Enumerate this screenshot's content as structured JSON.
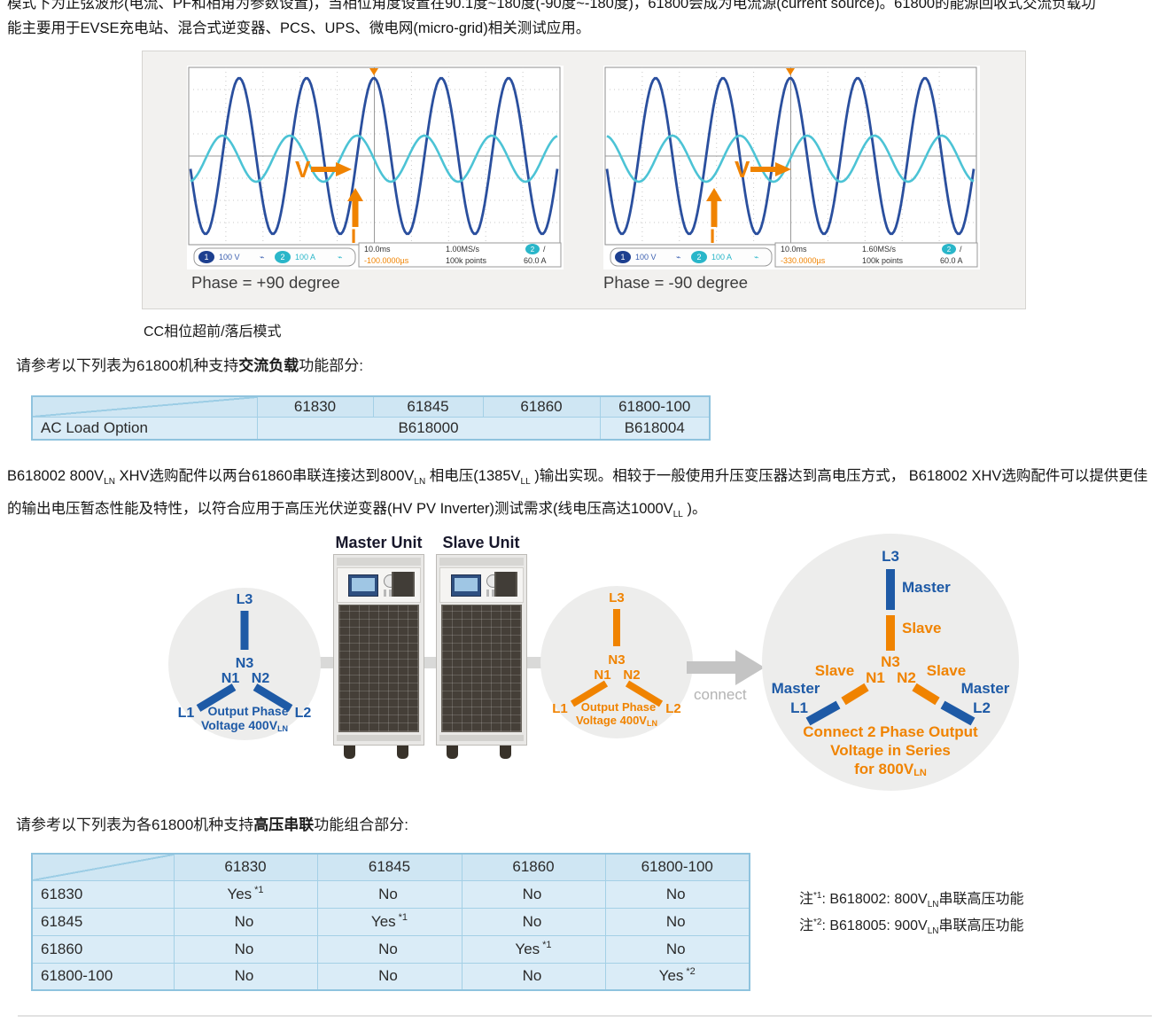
{
  "colors": {
    "brand_blue": "#1e5aa6",
    "brand_orange": "#f08300",
    "scope_v": "#2a4f9e",
    "scope_i": "#4cc3d5",
    "table_border": "#8fc3de",
    "table_header_bg": "#cfe6f3",
    "table_cell_bg": "#daecf7"
  },
  "intro": {
    "line1": "模式下为正弦波形(电流、PF和相角为参数设置)，当相位角度设置在90.1度~180度(-90度~-180度)，61800会成为电流源(current source)。61800的能源回收式交流负载功",
    "line2": "能主要用于EVSE充电站、混合式逆变器、PCS、UPS、微电网(micro-grid)相关测试应用。"
  },
  "scope_figure": {
    "caption": "CC相位超前/落后模式",
    "scopes": [
      {
        "phase_caption": "Phase = +90 degree",
        "v_label": "V",
        "i_label": "I",
        "ch1_num": "1",
        "ch1": "100 V",
        "ch2_num": "2",
        "ch2": "100 A",
        "timebase": "10.0ms",
        "sample_rate": "1.00MS/s",
        "trig_ch": "2",
        "trig_slope": "/",
        "delay": "-100.0000µs",
        "record": "100k points",
        "trig_level": "60.0 A"
      },
      {
        "phase_caption": "Phase = -90 degree",
        "v_label": "V",
        "i_label": "I",
        "ch1_num": "1",
        "ch1": "100 V",
        "ch2_num": "2",
        "ch2": "100 A",
        "timebase": "10.0ms",
        "sample_rate": "1.60MS/s",
        "trig_ch": "2",
        "trig_slope": "/",
        "delay": "-330.0000µs",
        "record": "100k points",
        "trig_level": "60.0 A"
      }
    ]
  },
  "section_ac": {
    "lead": "请参考以下列表为61800机种支持",
    "bold": "交流负载",
    "tail": "功能部分:"
  },
  "table_ac": {
    "col_headers": [
      "61830",
      "61845",
      "61860",
      "61800-100"
    ],
    "row_label": "AC Load Option",
    "span_value": "B618000",
    "last_value": "B618004"
  },
  "para_xhv": {
    "s1": "B618002 800V",
    "sub1": "LN",
    "s2": " XHV选购配件以两台61860串联连接达到800V",
    "sub2": "LN",
    "s3": " 相电压(1385V",
    "sub3": "LL",
    "s4": " )输出实现。相较于一般使用升压变压器达到高电压方式， B618002 XHV选购配件可以提供更佳的输出电压暂态性能及特性，以符合应用于高压光伏逆变器(HV PV Inverter)测试需求(线电压高达1000V",
    "sub4": "LL",
    "s5": " )。"
  },
  "diagram": {
    "master_unit": "Master Unit",
    "slave_unit": "Slave Unit",
    "connect": "connect",
    "wye": {
      "l3": "L3",
      "n3": "N3",
      "n1": "N1",
      "n2": "N2",
      "l1": "L1",
      "l2": "L2"
    },
    "left_caption1": "Output Phase",
    "left_caption2": "Voltage 400V",
    "left_caption_sub": "LN",
    "mid_caption1": "Output Phase",
    "mid_caption2": "Voltage 400V",
    "mid_caption_sub": "LN",
    "right": {
      "master": "Master",
      "slave": "Slave",
      "caption1": "Connect 2 Phase Output",
      "caption2": "Voltage in Series",
      "caption3": "for 800V",
      "caption3_sub": "LN"
    }
  },
  "section_hv": {
    "lead": "请参考以下列表为各61800机种支持",
    "bold": "高压串联",
    "tail": "功能组合部分:"
  },
  "table_hv": {
    "col_headers": [
      "61830",
      "61845",
      "61860",
      "61800-100"
    ],
    "rows": [
      {
        "label": "61830",
        "cells": [
          {
            "t": "Yes",
            "sup": "*1"
          },
          {
            "t": "No"
          },
          {
            "t": "No"
          },
          {
            "t": "No"
          }
        ]
      },
      {
        "label": "61845",
        "cells": [
          {
            "t": "No"
          },
          {
            "t": "Yes",
            "sup": "*1"
          },
          {
            "t": "No"
          },
          {
            "t": "No"
          }
        ]
      },
      {
        "label": "61860",
        "cells": [
          {
            "t": "No"
          },
          {
            "t": "No"
          },
          {
            "t": "Yes",
            "sup": "*1"
          },
          {
            "t": "No"
          }
        ]
      },
      {
        "label": "61800-100",
        "cells": [
          {
            "t": "No"
          },
          {
            "t": "No"
          },
          {
            "t": "No"
          },
          {
            "t": "Yes",
            "sup": "*2"
          }
        ]
      }
    ]
  },
  "notes": [
    {
      "prefix": "注",
      "sup": "*1",
      "body": ": B618002: 800V",
      "sub": "LN",
      "tail": "串联高压功能"
    },
    {
      "prefix": "注",
      "sup": "*2",
      "body": ": B618005: 900V",
      "sub": "LN",
      "tail": "串联高压功能"
    }
  ]
}
